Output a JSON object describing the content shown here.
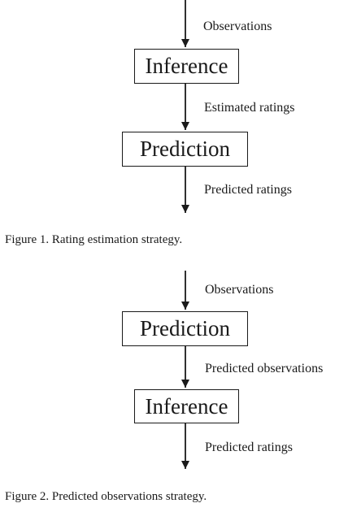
{
  "figure1": {
    "edges": [
      {
        "label": "Observations"
      },
      {
        "label": "Estimated ratings"
      },
      {
        "label": "Predicted ratings"
      }
    ],
    "nodes": [
      {
        "label": "Inference"
      },
      {
        "label": "Prediction"
      }
    ],
    "caption": "Figure 1.  Rating estimation strategy."
  },
  "figure2": {
    "edges": [
      {
        "label": "Observations"
      },
      {
        "label": "Predicted observations"
      },
      {
        "label": "Predicted ratings"
      }
    ],
    "nodes": [
      {
        "label": "Prediction"
      },
      {
        "label": "Inference"
      }
    ],
    "caption": "Figure 2.  Predicted observations strategy."
  }
}
